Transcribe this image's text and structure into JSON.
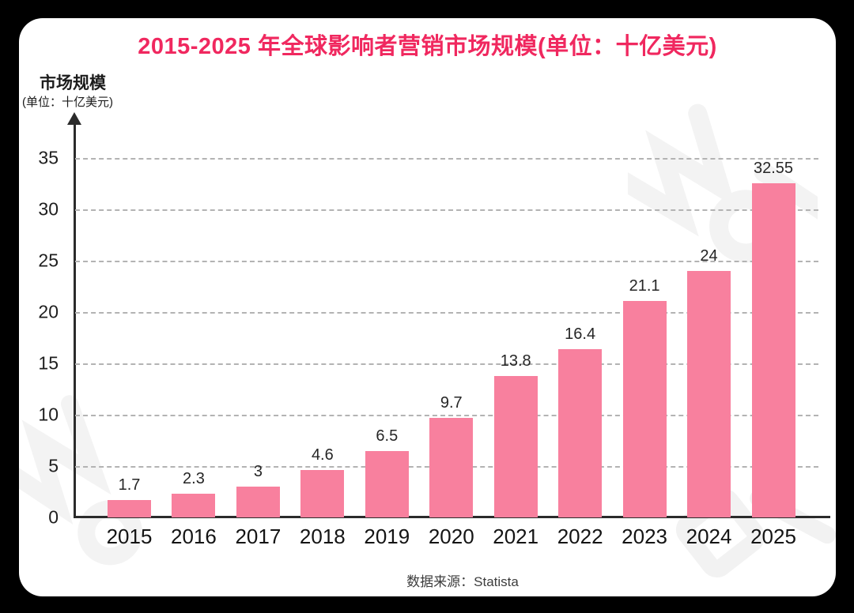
{
  "page": {
    "background_color": "#000000",
    "card_color": "#ffffff"
  },
  "title": {
    "text": "2015-2025 年全球影响者营销市场规模(单位：十亿美元)",
    "color": "#F0285F"
  },
  "y_axis": {
    "label": "市场规模",
    "sublabel": "(单位：十亿美元)"
  },
  "source": {
    "text": "数据来源：Statista"
  },
  "chart_data": {
    "type": "bar",
    "title": "2015-2025 年全球影响者营销市场规模(单位：十亿美元)",
    "categories": [
      "2015",
      "2016",
      "2017",
      "2018",
      "2019",
      "2020",
      "2021",
      "2022",
      "2023",
      "2024",
      "2025"
    ],
    "values": [
      1.7,
      2.3,
      3,
      4.6,
      6.5,
      9.7,
      13.8,
      16.4,
      21.1,
      24,
      32.55
    ],
    "value_labels": [
      "1.7",
      "2.3",
      "3",
      "4.6",
      "6.5",
      "9.7",
      "13.8",
      "16.4",
      "21.1",
      "24",
      "32.55"
    ],
    "xlabel": "",
    "ylabel": "市场规模 (单位：十亿美元)",
    "ylim": [
      0,
      35
    ],
    "ytick_step": 5,
    "yticks": [
      0,
      5,
      10,
      15,
      20,
      25,
      30,
      35
    ],
    "grid": "horizontal-dashed",
    "legend": "none",
    "bar_color": "#F8809E",
    "axis_color": "#2b2b2b",
    "grid_color": "#b3b3b3",
    "source": "数据来源：Statista"
  }
}
